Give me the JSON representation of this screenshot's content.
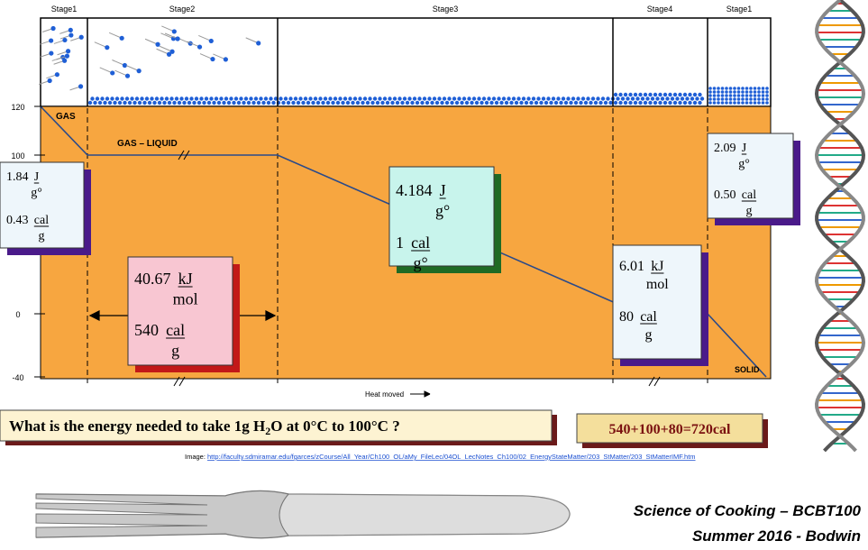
{
  "diagram": {
    "stage_labels": [
      "Stage1",
      "Stage2",
      "Stage3",
      "Stage4",
      "Stage1"
    ],
    "temperature_labels": [
      "120",
      "100",
      "0",
      "-40"
    ],
    "region_labels": {
      "gas": "GAS",
      "gas_liquid": "GAS – LIQUID",
      "solid": "SOLID"
    },
    "x_axis_label": "Heat moved",
    "boxes": [
      {
        "items": [
          {
            "number": "1.84",
            "numerator": "J",
            "denominator": "g°"
          },
          {
            "number": "0.43",
            "numerator": "cal",
            "denominator": "g"
          }
        ]
      },
      {
        "items": [
          {
            "number": "40.67",
            "numerator": "kJ",
            "denominator": "mol"
          },
          {
            "number": "540",
            "numerator": "cal",
            "denominator": "g"
          }
        ]
      },
      {
        "items": [
          {
            "number": "4.184",
            "numerator": "J",
            "denominator": "g°"
          },
          {
            "number": "1",
            "numerator": "cal",
            "denominator": "g°"
          }
        ]
      },
      {
        "items": [
          {
            "number": "6.01",
            "numerator": "kJ",
            "denominator": "mol"
          },
          {
            "number": "80",
            "numerator": "cal",
            "denominator": "g"
          }
        ]
      },
      {
        "items": [
          {
            "number": "2.09",
            "numerator": "J",
            "denominator": "g°"
          },
          {
            "number": "0.50",
            "numerator": "cal",
            "denominator": "g"
          }
        ]
      }
    ]
  },
  "question": {
    "before": "What is the energy needed to take 1g H",
    "subscript": "2",
    "after": "O at 0°C to 100°C  ?"
  },
  "answer": "540+100+80=720cal",
  "image_credit": {
    "prefix": "Image: ",
    "url": "http://faculty.sdmiramar.edu/fgarces/zCourse/All_Year/Ch100_OL/aMy_FileLec/04OL_LecNotes_Ch100/02_EnergyStateMatter/203_StMatter/203_StMatterIMF.htm"
  },
  "footer": {
    "course": "Science of Cooking – BCBT100",
    "term": "Summer 2016 - Bodwin"
  }
}
